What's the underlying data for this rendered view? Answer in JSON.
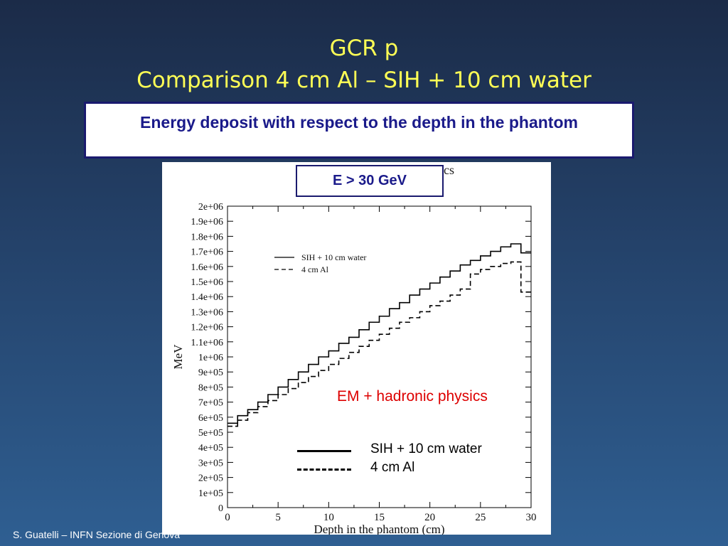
{
  "slide": {
    "title_line1": "GCR p",
    "title_line2": "Comparison 4 cm Al – SIH + 10 cm water",
    "caption": "Energy deposit  with respect to the depth in the phantom",
    "energy_label": "E > 30 GeV",
    "partial_text": "cs",
    "physics_label": "EM + hadronic physics",
    "footer": "S. Guatelli – INFN Sezione di Genova"
  },
  "chart_data": {
    "type": "line",
    "title": "",
    "xlabel": "Depth in the phantom (cm)",
    "ylabel": "MeV",
    "xlim": [
      0,
      30
    ],
    "ylim": [
      0,
      2000000
    ],
    "x_ticks": [
      0,
      5,
      10,
      15,
      20,
      25,
      30
    ],
    "y_ticks": [
      0,
      100000,
      200000,
      300000,
      400000,
      500000,
      600000,
      700000,
      800000,
      900000,
      1000000,
      1100000,
      1200000,
      1300000,
      1400000,
      1500000,
      1600000,
      1700000,
      1800000,
      1900000,
      2000000
    ],
    "x_tick_labels": [
      "0",
      "5",
      "10",
      "15",
      "20",
      "25",
      "30"
    ],
    "y_tick_labels": [
      "0",
      "1e+05",
      "2e+05",
      "3e+05",
      "4e+05",
      "5e+05",
      "6e+05",
      "7e+05",
      "8e+05",
      "9e+05",
      "1e+06",
      "1.1e+06",
      "1.2e+06",
      "1.3e+06",
      "1.4e+06",
      "1.5e+06",
      "1.6e+06",
      "1.7e+06",
      "1.8e+06",
      "1.9e+06",
      "2e+06"
    ],
    "grid": false,
    "legend_position": "top-left",
    "step": true,
    "series": [
      {
        "name": "SIH + 10 cm water",
        "style": "solid",
        "x": [
          0,
          1,
          2,
          3,
          4,
          5,
          6,
          7,
          8,
          9,
          10,
          11,
          12,
          13,
          14,
          15,
          16,
          17,
          18,
          19,
          20,
          21,
          22,
          23,
          24,
          25,
          26,
          27,
          28,
          29,
          30
        ],
        "values": [
          560000,
          610000,
          650000,
          700000,
          750000,
          800000,
          850000,
          900000,
          950000,
          1000000,
          1040000,
          1090000,
          1130000,
          1180000,
          1230000,
          1270000,
          1320000,
          1360000,
          1410000,
          1450000,
          1490000,
          1530000,
          1570000,
          1610000,
          1640000,
          1670000,
          1700000,
          1730000,
          1750000,
          1690000,
          1690000
        ]
      },
      {
        "name": "4 cm Al",
        "style": "dashed",
        "x": [
          0,
          1,
          2,
          3,
          4,
          5,
          6,
          7,
          8,
          9,
          10,
          11,
          12,
          13,
          14,
          15,
          16,
          17,
          18,
          19,
          20,
          21,
          22,
          23,
          24,
          25,
          26,
          27,
          28,
          29,
          30
        ],
        "values": [
          540000,
          580000,
          630000,
          670000,
          710000,
          750000,
          790000,
          830000,
          870000,
          910000,
          950000,
          990000,
          1030000,
          1070000,
          1110000,
          1150000,
          1190000,
          1230000,
          1260000,
          1300000,
          1340000,
          1370000,
          1410000,
          1450000,
          1550000,
          1580000,
          1600000,
          1620000,
          1630000,
          1430000,
          1430000
        ]
      }
    ],
    "overlay_legend": [
      "SIH + 10 cm water",
      "4 cm Al"
    ]
  }
}
